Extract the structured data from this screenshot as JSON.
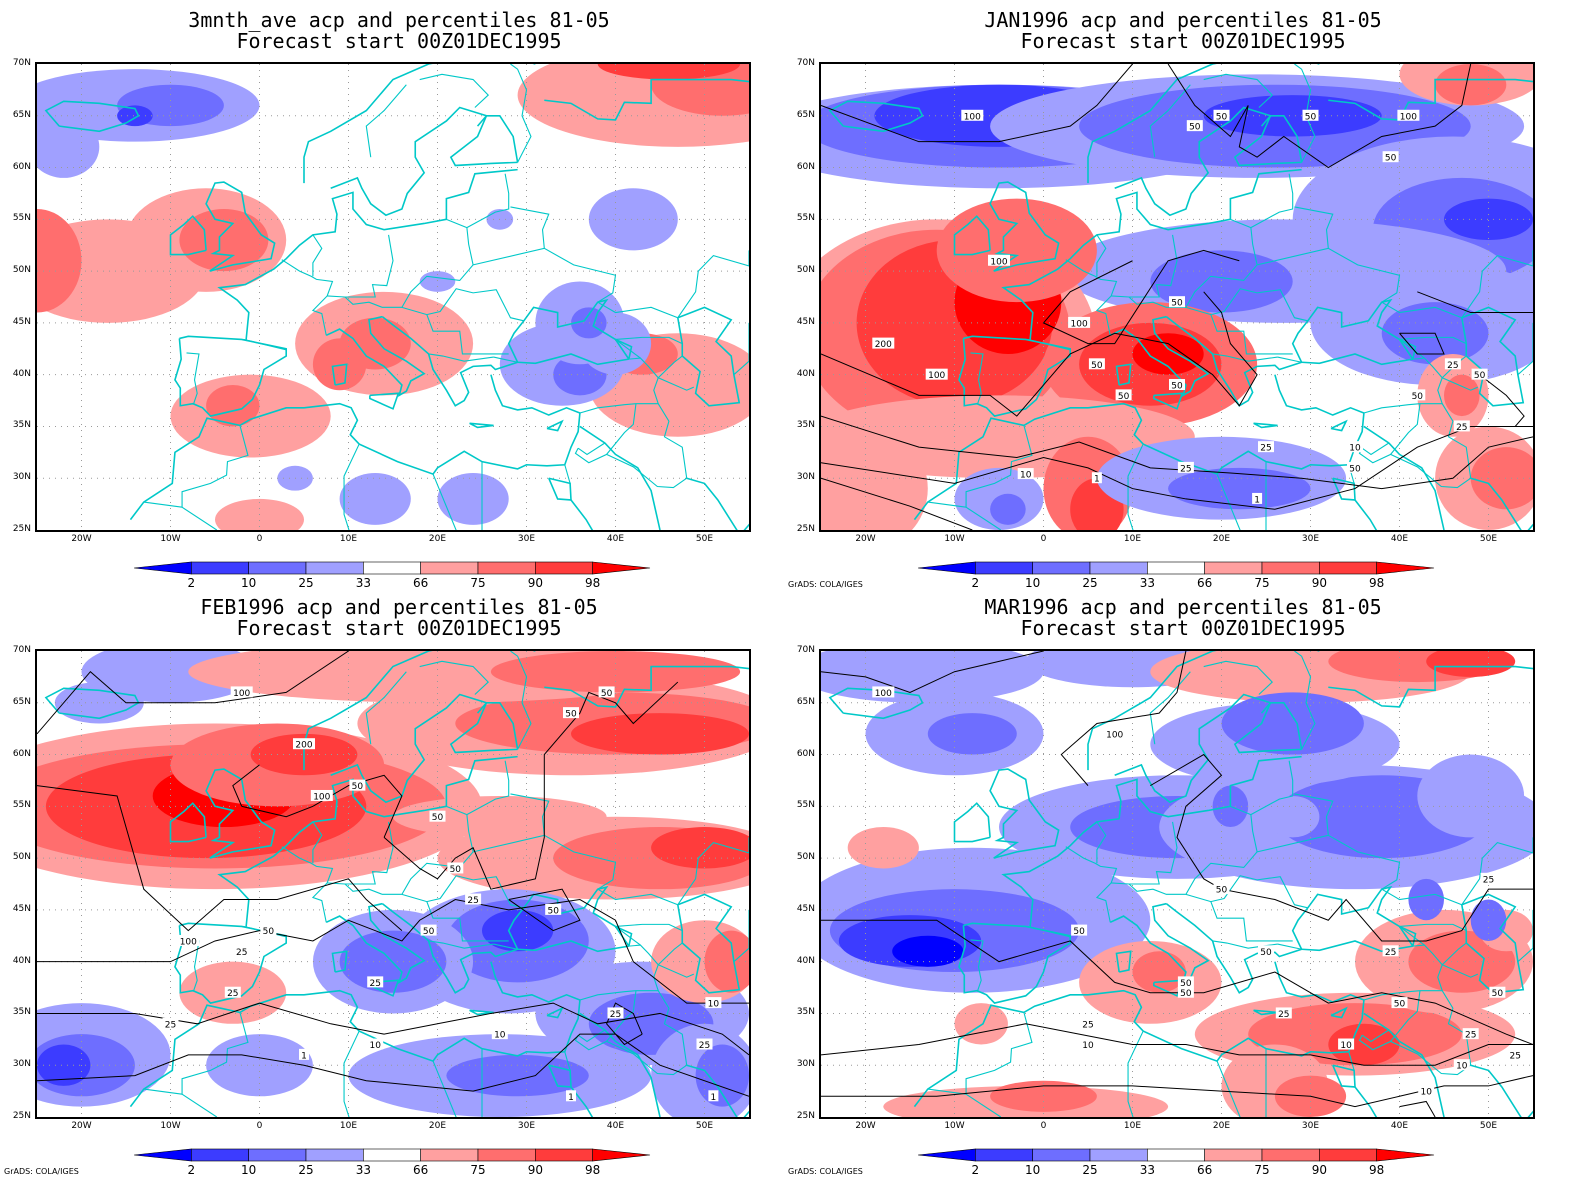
{
  "panels": [
    {
      "title": "3mnth_ave acp and percentiles 81-05",
      "subtitle": "Forecast start 00Z01DEC1995",
      "contours": [],
      "credit": ""
    },
    {
      "title": "JAN1996 acp and percentiles 81-05",
      "subtitle": "Forecast start 00Z01DEC1995",
      "contours": [
        "100",
        "50",
        "50",
        "50",
        "50",
        "100",
        "100",
        "200",
        "100",
        "50",
        "100",
        "50",
        "50",
        "25",
        "50",
        "50",
        "10",
        "25",
        "1",
        "10",
        "1",
        "25",
        "50",
        "50",
        "25"
      ],
      "credit": "GrADS: COLA/IGES"
    },
    {
      "title": "FEB1996 acp and percentiles 81-05",
      "subtitle": "Forecast start 00Z01DEC1995",
      "contours": [
        "100",
        "50",
        "50",
        "200",
        "100",
        "50",
        "50",
        "25",
        "50",
        "100",
        "50",
        "25",
        "50",
        "25",
        "25",
        "25",
        "1",
        "10",
        "10",
        "1",
        "10",
        "25",
        "25",
        "50",
        "1"
      ],
      "credit": "GrADS: COLA/IGES"
    },
    {
      "title": "MAR1996 acp and percentiles 81-05",
      "subtitle": "Forecast start 00Z01DEC1995",
      "contours": [
        "100",
        "100",
        "50",
        "50",
        "50",
        "50",
        "50",
        "25",
        "25",
        "10",
        "10",
        "25",
        "50",
        "25",
        "10",
        "50",
        "25",
        "10",
        "25"
      ],
      "credit": "GrADS: COLA/IGES"
    }
  ],
  "map_axes": {
    "lat_labels": [
      "70N",
      "65N",
      "60N",
      "55N",
      "50N",
      "45N",
      "40N",
      "35N",
      "30N",
      "25N"
    ],
    "lon_labels": [
      "20W",
      "10W",
      "0",
      "10E",
      "20E",
      "30E",
      "40E",
      "50E"
    ],
    "lon_range": [
      -25,
      55
    ],
    "lat_range": [
      25,
      70
    ]
  },
  "colorbar": {
    "labels": [
      "2",
      "10",
      "25",
      "33",
      "66",
      "75",
      "90",
      "98"
    ],
    "colors": [
      "#0000ff",
      "#3c3cff",
      "#6e6eff",
      "#a0a0ff",
      "#ffffff",
      "#ffa0a0",
      "#ff6e6e",
      "#ff3c3c",
      "#ff0000"
    ]
  },
  "colors": {
    "coast": "#00c8c8",
    "contour": "#000000",
    "grid": "#9a9a9a"
  }
}
